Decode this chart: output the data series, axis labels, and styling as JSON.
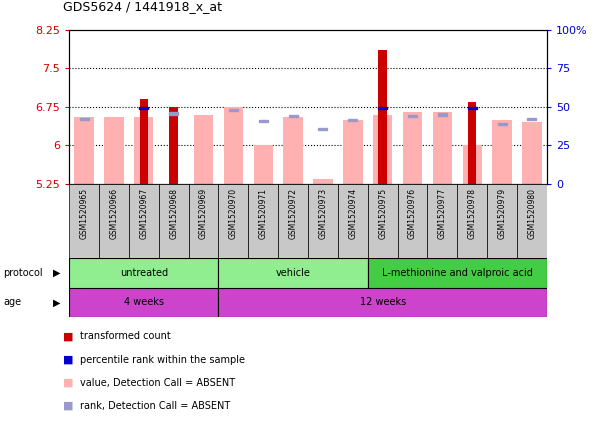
{
  "title": "GDS5624 / 1441918_x_at",
  "samples": [
    "GSM1520965",
    "GSM1520966",
    "GSM1520967",
    "GSM1520968",
    "GSM1520969",
    "GSM1520970",
    "GSM1520971",
    "GSM1520972",
    "GSM1520973",
    "GSM1520974",
    "GSM1520975",
    "GSM1520976",
    "GSM1520977",
    "GSM1520978",
    "GSM1520979",
    "GSM1520980"
  ],
  "ymin": 5.25,
  "ymax": 8.25,
  "yticks": [
    5.25,
    6.0,
    6.75,
    7.5,
    8.25
  ],
  "ytick_labels": [
    "5.25",
    "6",
    "6.75",
    "7.5",
    "8.25"
  ],
  "y2ticks": [
    0,
    25,
    50,
    75,
    100
  ],
  "y2tick_labels": [
    "0",
    "25",
    "50",
    "75",
    "100%"
  ],
  "dotted_lines": [
    6.0,
    6.75,
    7.5
  ],
  "red_bar_values": [
    5.25,
    5.25,
    6.9,
    6.75,
    5.25,
    5.25,
    5.25,
    5.25,
    5.25,
    5.25,
    7.85,
    5.25,
    5.25,
    6.85,
    5.25,
    5.25
  ],
  "pink_bar_values": [
    6.55,
    6.55,
    6.55,
    5.25,
    6.6,
    6.75,
    6.0,
    6.55,
    5.35,
    6.5,
    6.6,
    6.65,
    6.65,
    6.0,
    6.5,
    6.45
  ],
  "blue_sq_values": [
    null,
    null,
    6.72,
    null,
    null,
    null,
    null,
    null,
    null,
    null,
    6.73,
    null,
    null,
    6.73,
    null,
    null
  ],
  "light_blue_sq_values": [
    6.52,
    null,
    null,
    6.62,
    null,
    6.68,
    6.47,
    6.58,
    6.32,
    6.5,
    null,
    6.58,
    6.6,
    null,
    6.42,
    6.52
  ],
  "protocol_groups": [
    {
      "label": "untreated",
      "start": 0,
      "end": 4,
      "color": "#90EE90"
    },
    {
      "label": "vehicle",
      "start": 5,
      "end": 9,
      "color": "#90EE90"
    },
    {
      "label": "L-methionine and valproic acid",
      "start": 10,
      "end": 15,
      "color": "#5ADE5A"
    }
  ],
  "age_groups": [
    {
      "label": "4 weeks",
      "start": 0,
      "end": 4,
      "color": "#CC44CC"
    },
    {
      "label": "12 weeks",
      "start": 5,
      "end": 15,
      "color": "#CC44CC"
    }
  ],
  "red_color": "#CC0000",
  "pink_color": "#FFB0B0",
  "blue_sq_color": "#0000CC",
  "light_blue_sq_color": "#9999CC",
  "bg_color": "#FFFFFF",
  "tick_label_color_left": "#CC0000",
  "tick_label_color_right": "#0000CC",
  "sample_box_color": "#C8C8C8",
  "protocol_color_light": "#90EE90",
  "protocol_color_dark": "#44CC44",
  "age_color": "#CC44CC"
}
